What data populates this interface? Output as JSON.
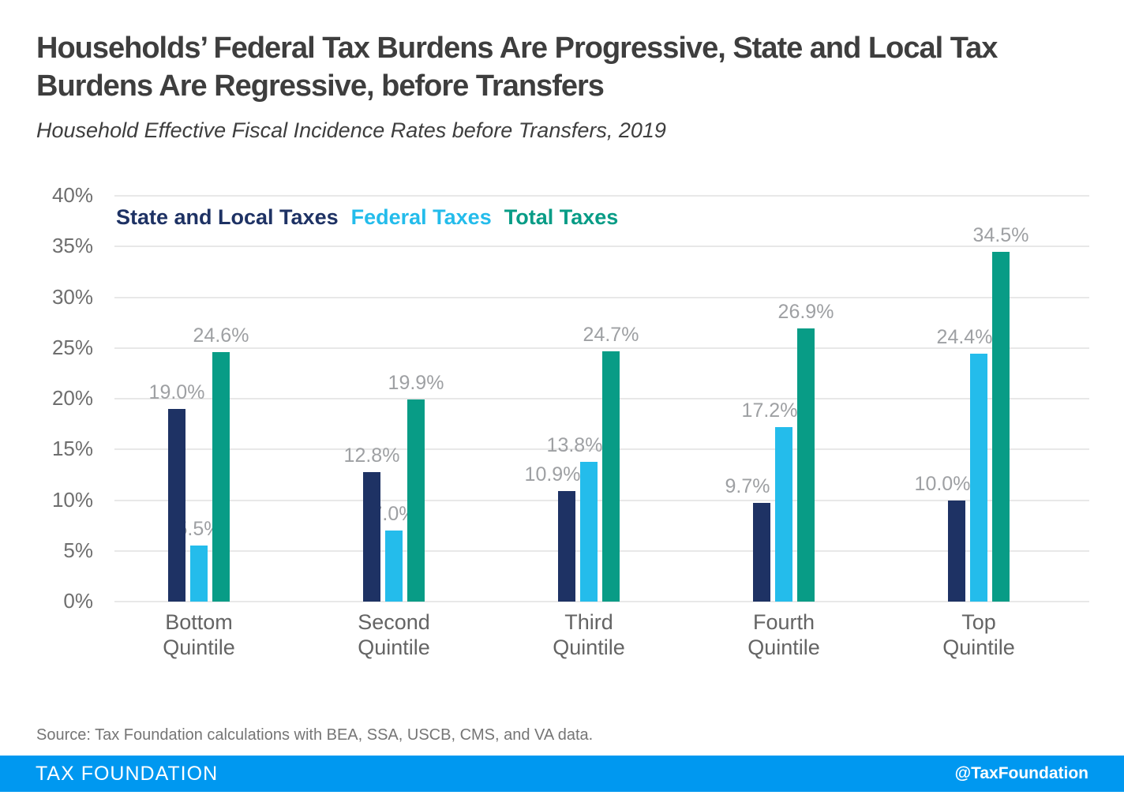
{
  "chart_data": {
    "type": "bar",
    "title": "Households’ Federal Tax Burdens Are Progressive, State and Local Tax Burdens Are Regressive, before Transfers",
    "title_lines": [
      "Households’ Federal Tax Burdens Are Progressive, State and Local Tax",
      "Burdens Are Regressive, before Transfers"
    ],
    "subtitle": "Household Effective Fiscal Incidence Rates before Transfers, 2019",
    "categories": [
      "Bottom\nQuintile",
      "Second\nQuintile",
      "Third\nQuintile",
      "Fourth\nQuintile",
      "Top\nQuintile"
    ],
    "series": [
      {
        "name": "State and Local Taxes",
        "color": "#1E3264",
        "values": [
          19.0,
          12.8,
          10.9,
          9.7,
          10.0
        ],
        "labels": [
          "19.0%",
          "12.8%",
          "10.9%",
          "9.7%",
          "10.0%"
        ]
      },
      {
        "name": "Federal Taxes",
        "color": "#24BCEB",
        "values": [
          5.5,
          7.0,
          13.8,
          17.2,
          24.4
        ],
        "labels": [
          "5.5%",
          "7.0%",
          "13.8%",
          "17.2%",
          "24.4%"
        ]
      },
      {
        "name": "Total Taxes",
        "color": "#089C86",
        "values": [
          24.6,
          19.9,
          24.7,
          26.9,
          34.5
        ],
        "labels": [
          "24.6%",
          "19.9%",
          "24.7%",
          "26.9%",
          "34.5%"
        ]
      }
    ],
    "ylim": [
      0,
      40
    ],
    "y_ticks": [
      "40%",
      "35%",
      "30%",
      "25%",
      "20%",
      "15%",
      "10%",
      "5%",
      "0%"
    ],
    "grid": true,
    "legend_position": "top-left-inside"
  },
  "source": "Source: Tax Foundation calculations with BEA, SSA, USCB, CMS, and VA data.",
  "footer": {
    "brand": "TAX FOUNDATION",
    "handle": "@TaxFoundation",
    "background": "#0098F0"
  },
  "colors": {
    "title": "#3E3E3E",
    "axis_ticks": "#6E6E6E",
    "data_labels": "#9EA0A3",
    "x_labels": "#646464",
    "gridline": "#E8E8E8",
    "source": "#757575",
    "footer_bg": "#0098F0",
    "footer_text": "#FFFFFF"
  }
}
